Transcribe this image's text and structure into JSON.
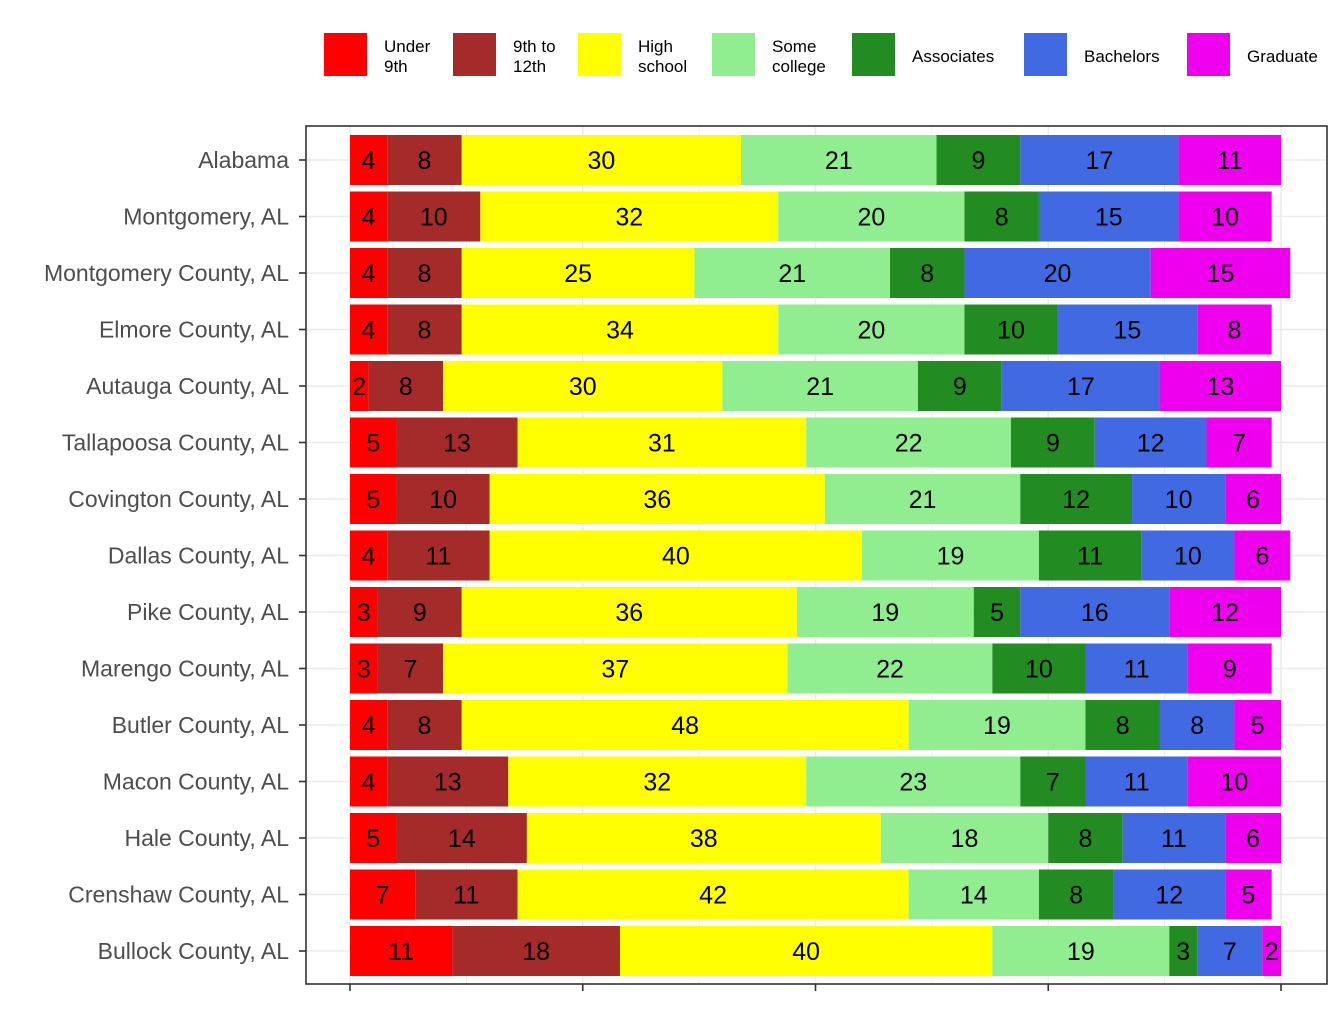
{
  "chart_data": {
    "type": "bar",
    "orientation": "horizontal",
    "stacked": true,
    "title": "",
    "xlabel": "",
    "ylabel": "",
    "xlim": [
      0,
      100
    ],
    "grid": true,
    "legend_position": "top",
    "categories": [
      "Alabama",
      "Montgomery, AL",
      "Montgomery County, AL",
      "Elmore County, AL",
      "Autauga County, AL",
      "Tallapoosa County, AL",
      "Covington County, AL",
      "Dallas County, AL",
      "Pike County, AL",
      "Marengo County, AL",
      "Butler County, AL",
      "Macon County, AL",
      "Hale County, AL",
      "Crenshaw County, AL",
      "Bullock County, AL"
    ],
    "series": [
      {
        "name": "Under 9th",
        "lines": [
          "Under",
          "9th"
        ],
        "color": "#ff0000",
        "values": [
          4,
          4,
          4,
          4,
          2,
          5,
          5,
          4,
          3,
          3,
          4,
          4,
          5,
          7,
          11
        ]
      },
      {
        "name": "9th to 12th",
        "lines": [
          "9th to",
          "12th"
        ],
        "color": "#a52a2a",
        "values": [
          8,
          10,
          8,
          8,
          8,
          13,
          10,
          11,
          9,
          7,
          8,
          13,
          14,
          11,
          18
        ]
      },
      {
        "name": "High school",
        "lines": [
          "High",
          "school"
        ],
        "color": "#ffff00",
        "values": [
          30,
          32,
          25,
          34,
          30,
          31,
          36,
          40,
          36,
          37,
          48,
          32,
          38,
          42,
          40
        ]
      },
      {
        "name": "Some college",
        "lines": [
          "Some",
          "college"
        ],
        "color": "#90ee90",
        "values": [
          21,
          20,
          21,
          20,
          21,
          22,
          21,
          19,
          19,
          22,
          19,
          23,
          18,
          14,
          19
        ]
      },
      {
        "name": "Associates",
        "lines": [
          "Associates"
        ],
        "color": "#228b22",
        "values": [
          9,
          8,
          8,
          10,
          9,
          9,
          12,
          11,
          5,
          10,
          8,
          7,
          8,
          8,
          3
        ]
      },
      {
        "name": "Bachelors",
        "lines": [
          "Bachelors"
        ],
        "color": "#4169e1",
        "values": [
          17,
          15,
          20,
          15,
          17,
          12,
          10,
          10,
          16,
          11,
          8,
          11,
          11,
          12,
          7
        ]
      },
      {
        "name": "Graduate",
        "lines": [
          "Graduate"
        ],
        "color": "#ee00ee",
        "values": [
          11,
          10,
          15,
          8,
          13,
          7,
          6,
          6,
          12,
          9,
          5,
          10,
          6,
          5,
          2
        ]
      }
    ]
  }
}
